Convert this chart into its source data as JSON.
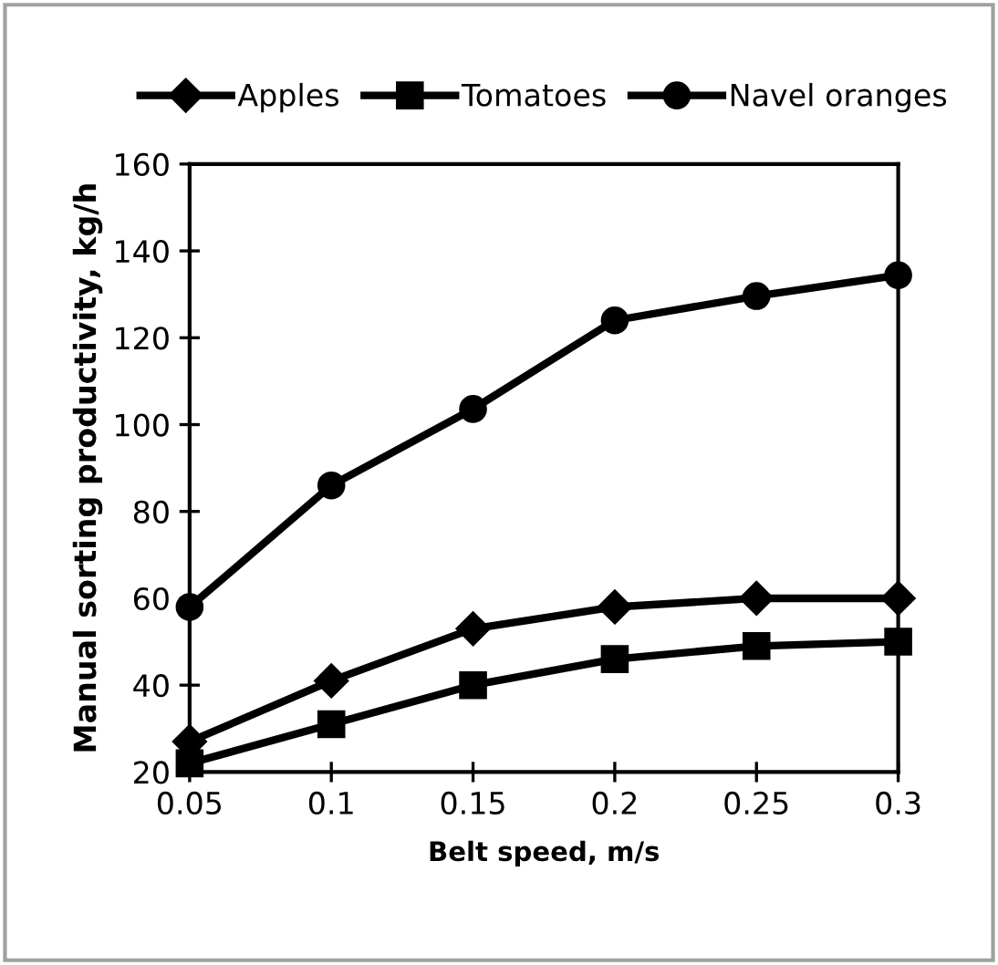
{
  "chart_data": {
    "type": "line",
    "xlabel": "Belt speed, m/s",
    "ylabel": "Manual sorting productivity, kg/h",
    "x": [
      0.05,
      0.1,
      0.15,
      0.2,
      0.25,
      0.3
    ],
    "series": [
      {
        "name": "Apples",
        "color": "#000000",
        "marker": "diamond",
        "values": [
          27,
          41,
          53,
          58,
          60,
          60
        ]
      },
      {
        "name": "Tomatoes",
        "color": "#000000",
        "marker": "square",
        "values": [
          22,
          31,
          40,
          46,
          49,
          50
        ]
      },
      {
        "name": "Navel oranges",
        "color": "#000000",
        "marker": "circle",
        "values": [
          58,
          86,
          103.6,
          124,
          129.6,
          134.4
        ]
      }
    ],
    "xlim": [
      0.05,
      0.3
    ],
    "xticks": [
      0.05,
      0.1,
      0.15,
      0.2,
      0.25,
      0.3
    ],
    "ylim": [
      20,
      160
    ],
    "yticks": [
      20,
      40,
      60,
      80,
      100,
      120,
      140,
      160
    ],
    "grid": false,
    "legend": "top",
    "line_style": "solid"
  }
}
